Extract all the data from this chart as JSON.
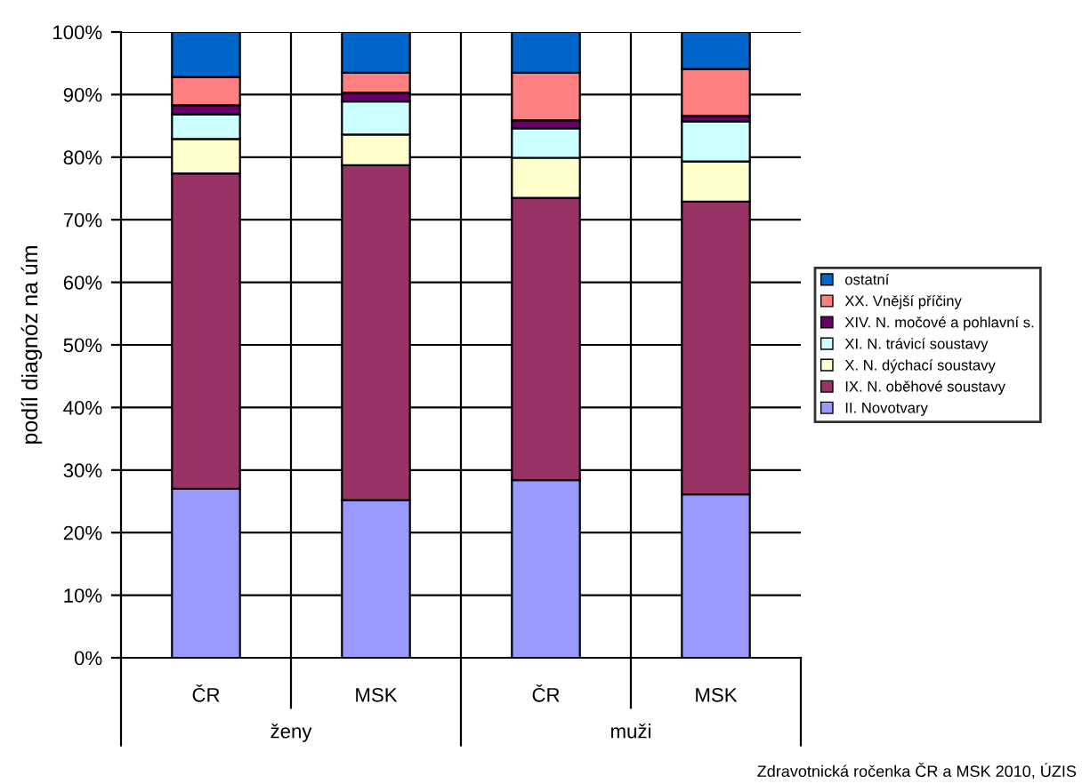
{
  "chart_data": {
    "type": "bar",
    "stacked": true,
    "ylabel": "podíl diagnóz na úm",
    "categories": [
      "ČR",
      "MSK",
      "ČR",
      "MSK"
    ],
    "series": [
      {
        "name": "II. Novotvary",
        "color": "#9999ff",
        "values": [
          27.0,
          25.2,
          28.4,
          26.1
        ]
      },
      {
        "name": "IX. N. oběhové soustavy",
        "color": "#993366",
        "values": [
          50.4,
          53.5,
          45.1,
          46.8
        ]
      },
      {
        "name": "X. N. dýchací soustavy",
        "color": "#ffffcc",
        "values": [
          5.5,
          4.9,
          6.4,
          6.4
        ]
      },
      {
        "name": "XI. N. trávicí soustavy",
        "color": "#ccffff",
        "values": [
          3.9,
          5.3,
          4.7,
          6.4
        ]
      },
      {
        "name": "XIV. N. močové a pohlavní s.",
        "color": "#660066",
        "values": [
          1.5,
          1.4,
          1.3,
          0.9
        ]
      },
      {
        "name": "XX. Vnější příčiny",
        "color": "#ff8080",
        "values": [
          4.5,
          3.2,
          7.6,
          7.5
        ]
      },
      {
        "name": "ostatní",
        "color": "#0066cc",
        "values": [
          7.2,
          6.5,
          6.5,
          5.9
        ]
      }
    ],
    "ylim": [
      0,
      100
    ],
    "yticks": [
      {
        "value": 0,
        "label": "0%"
      },
      {
        "value": 10,
        "label": "10%"
      },
      {
        "value": 20,
        "label": "20%"
      },
      {
        "value": 30,
        "label": "30%"
      },
      {
        "value": 40,
        "label": "40%"
      },
      {
        "value": 50,
        "label": "50%"
      },
      {
        "value": 60,
        "label": "60%"
      },
      {
        "value": 70,
        "label": "70%"
      },
      {
        "value": 80,
        "label": "80%"
      },
      {
        "value": 90,
        "label": "90%"
      },
      {
        "value": 100,
        "label": "100%"
      }
    ],
    "grid": true,
    "legend": "right",
    "annotations": [
      "ženy",
      "muži",
      "Zdravotnická ročenka ČR a MSK 2010, ÚZIS"
    ]
  }
}
